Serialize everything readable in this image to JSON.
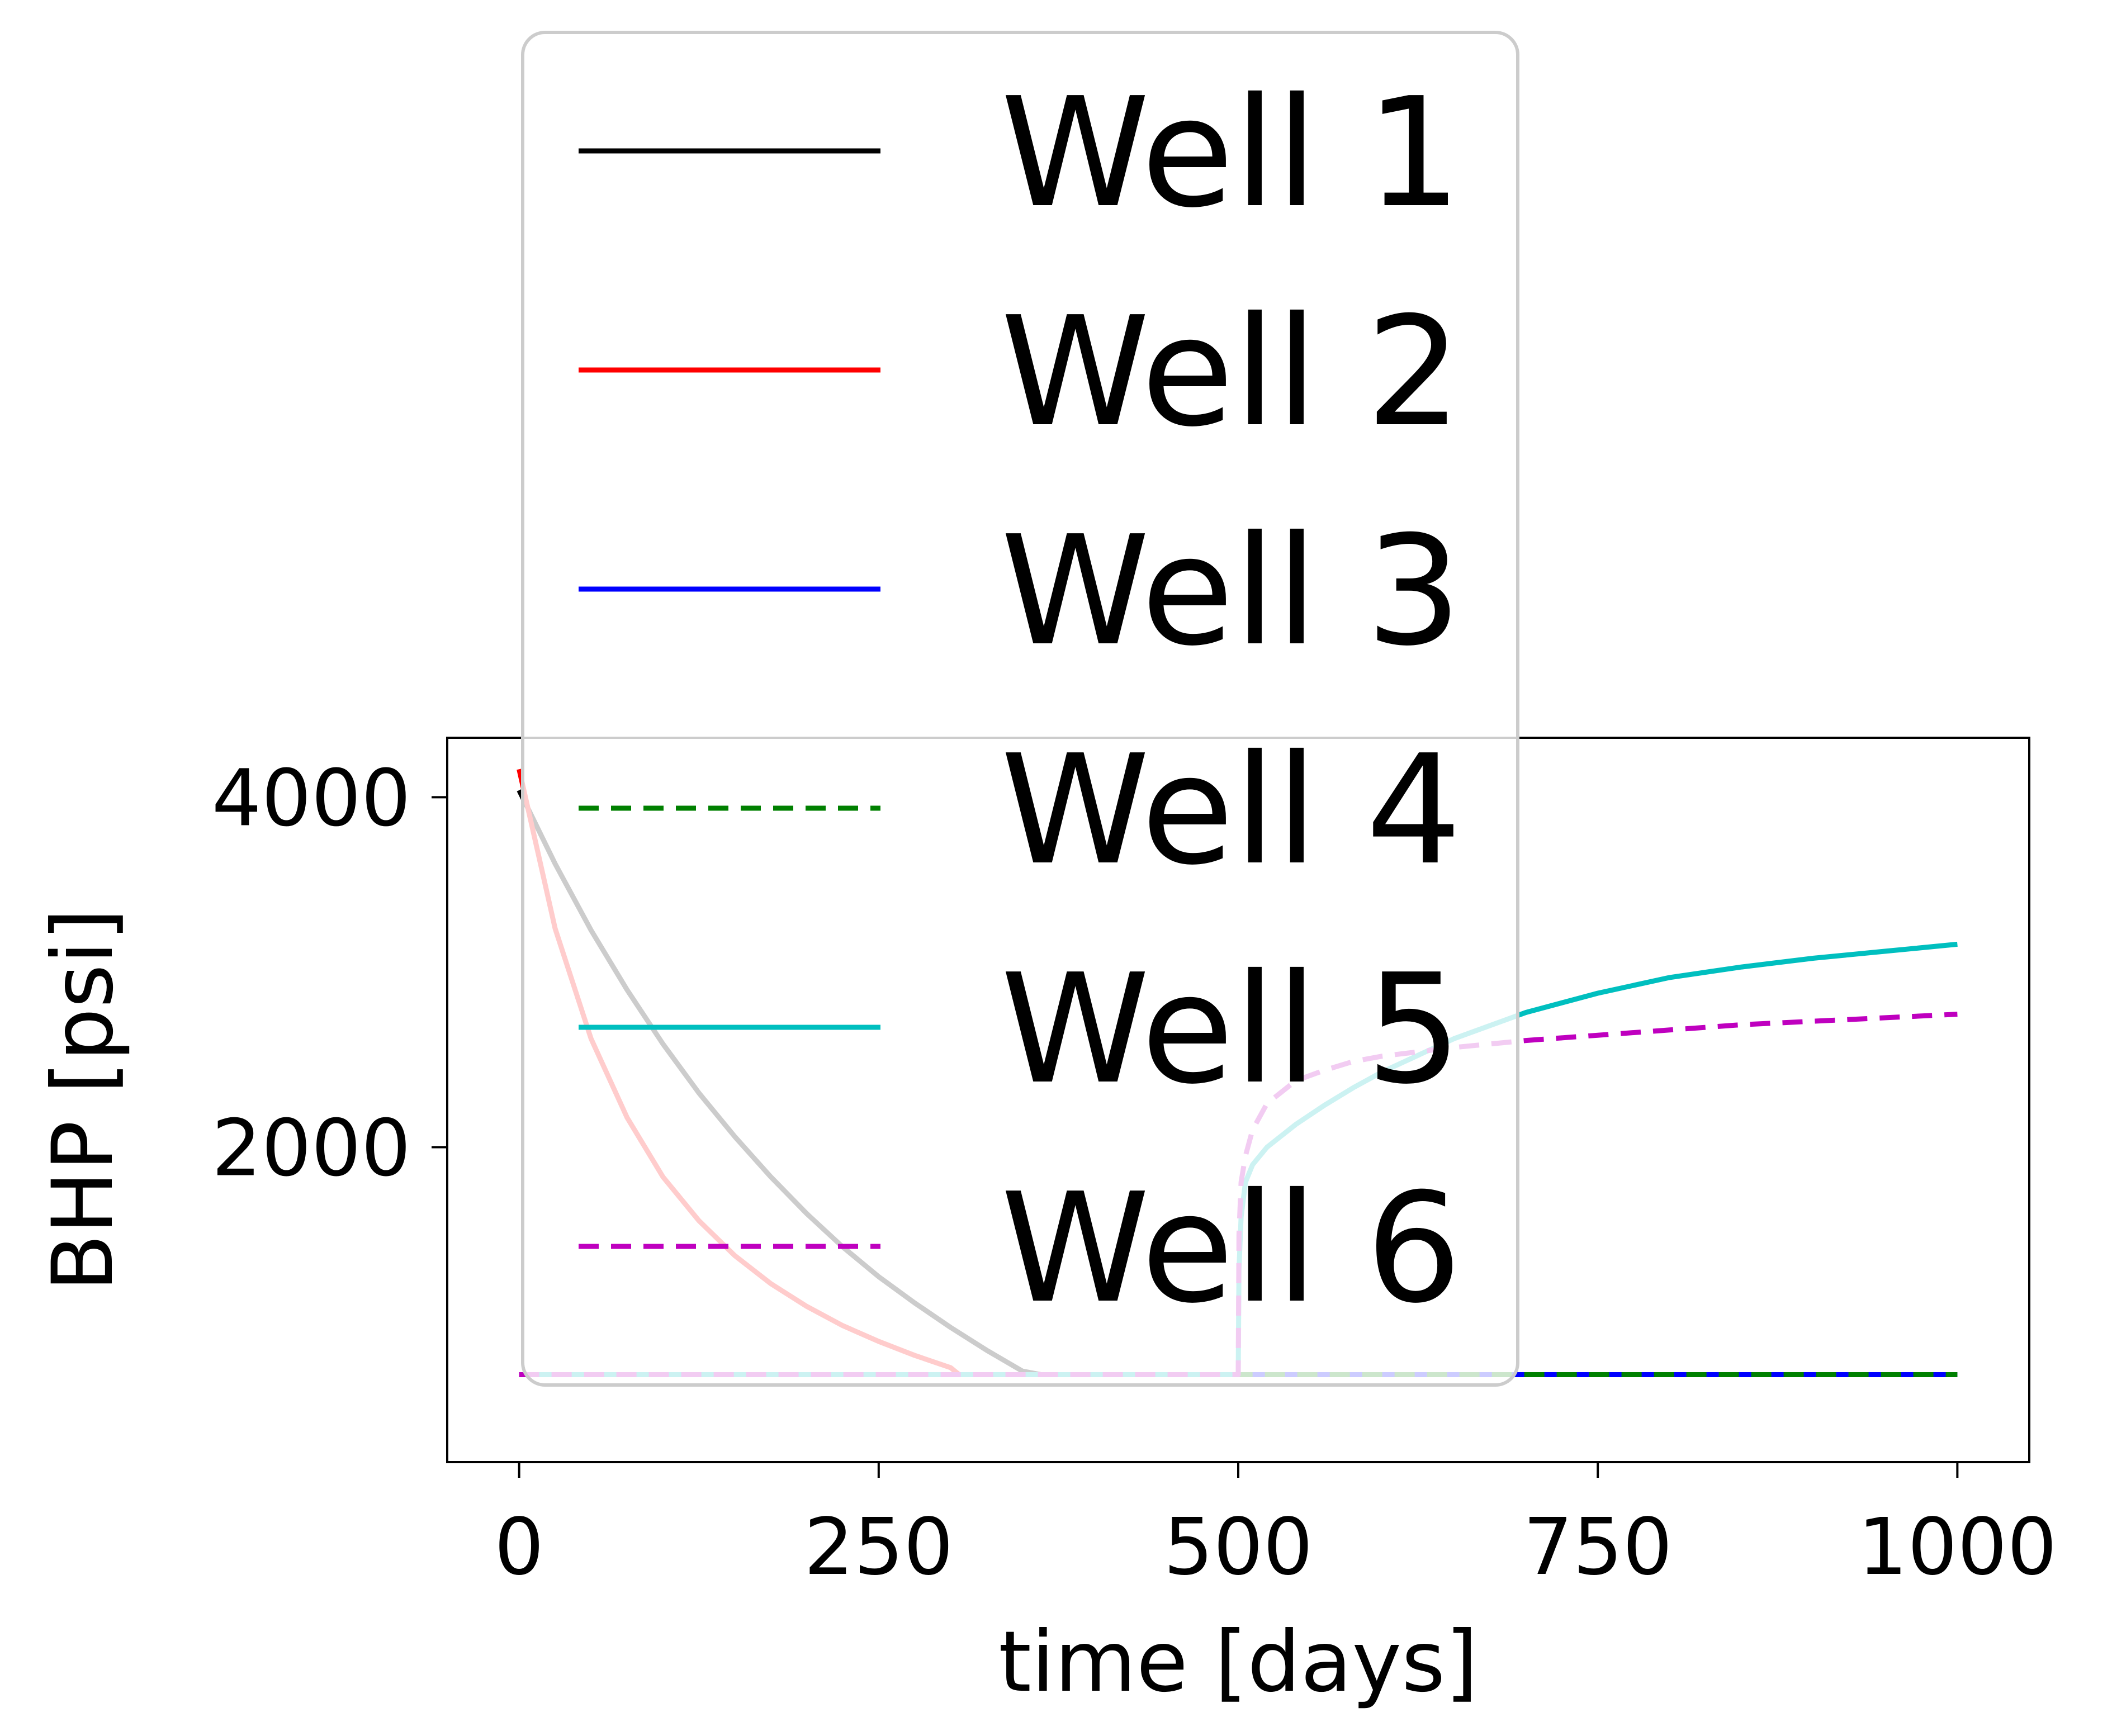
{
  "chart_data": {
    "type": "line",
    "title": "",
    "xlabel": "time [days]",
    "ylabel": "BHP [psi]",
    "xlim": [
      -50,
      1050
    ],
    "ylim": [
      200,
      4340
    ],
    "xticks": [
      0,
      250,
      500,
      750,
      1000
    ],
    "xtick_labels": [
      "0",
      "250",
      "500",
      "750",
      "1000"
    ],
    "yticks": [
      2000,
      4000
    ],
    "ytick_labels": [
      "2000",
      "4000"
    ],
    "grid": false,
    "legend": {
      "placement": "upper center, overlapping plot",
      "entries": [
        "Well 1",
        "Well 2",
        "Well 3",
        "Well 4",
        "Well 5",
        "Well 6"
      ]
    },
    "series": [
      {
        "name": "Well 1",
        "color": "#000000",
        "dash": "solid",
        "x": [
          0,
          25,
          50,
          75,
          100,
          125,
          150,
          175,
          200,
          225,
          250,
          275,
          300,
          325,
          350,
          363,
          400,
          500,
          600,
          700,
          800,
          900,
          1000
        ],
        "y": [
          4040,
          3620,
          3240,
          2900,
          2590,
          2310,
          2060,
          1830,
          1620,
          1430,
          1260,
          1110,
          970,
          840,
          720,
          700,
          700,
          700,
          700,
          700,
          700,
          700,
          700
        ]
      },
      {
        "name": "Well 2",
        "color": "#ff0000",
        "dash": "solid",
        "x": [
          0,
          25,
          50,
          75,
          100,
          125,
          150,
          175,
          200,
          225,
          250,
          275,
          300,
          306,
          400,
          500,
          600,
          700,
          800,
          900,
          1000
        ],
        "y": [
          4160,
          3250,
          2620,
          2170,
          1830,
          1580,
          1380,
          1220,
          1090,
          980,
          890,
          810,
          740,
          700,
          700,
          700,
          700,
          700,
          700,
          700,
          700
        ]
      },
      {
        "name": "Well 3",
        "color": "#0000ff",
        "dash": "solid",
        "x": [
          0,
          250,
          500,
          750,
          1000
        ],
        "y": [
          700,
          700,
          700,
          700,
          700
        ]
      },
      {
        "name": "Well 4",
        "color": "#008000",
        "dash": "dashed",
        "x": [
          0,
          250,
          500,
          750,
          1000
        ],
        "y": [
          700,
          700,
          700,
          700,
          700
        ]
      },
      {
        "name": "Well 5",
        "color": "#00bfbf",
        "dash": "solid",
        "x": [
          0,
          250,
          500,
          500.5,
          502,
          505,
          510,
          520,
          540,
          560,
          580,
          600,
          650,
          700,
          750,
          800,
          850,
          900,
          950,
          1000
        ],
        "y": [
          700,
          700,
          700,
          1300,
          1600,
          1800,
          1900,
          2000,
          2130,
          2240,
          2340,
          2430,
          2620,
          2770,
          2880,
          2970,
          3030,
          3080,
          3120,
          3160
        ]
      },
      {
        "name": "Well 6",
        "color": "#bf00bf",
        "dash": "dashed",
        "x": [
          0,
          250,
          500,
          500.5,
          502,
          505,
          510,
          520,
          540,
          560,
          580,
          600,
          650,
          700,
          750,
          800,
          850,
          900,
          950,
          1000
        ],
        "y": [
          700,
          700,
          700,
          1500,
          1800,
          1950,
          2100,
          2250,
          2380,
          2440,
          2490,
          2520,
          2570,
          2610,
          2640,
          2670,
          2700,
          2720,
          2740,
          2760
        ]
      }
    ]
  }
}
